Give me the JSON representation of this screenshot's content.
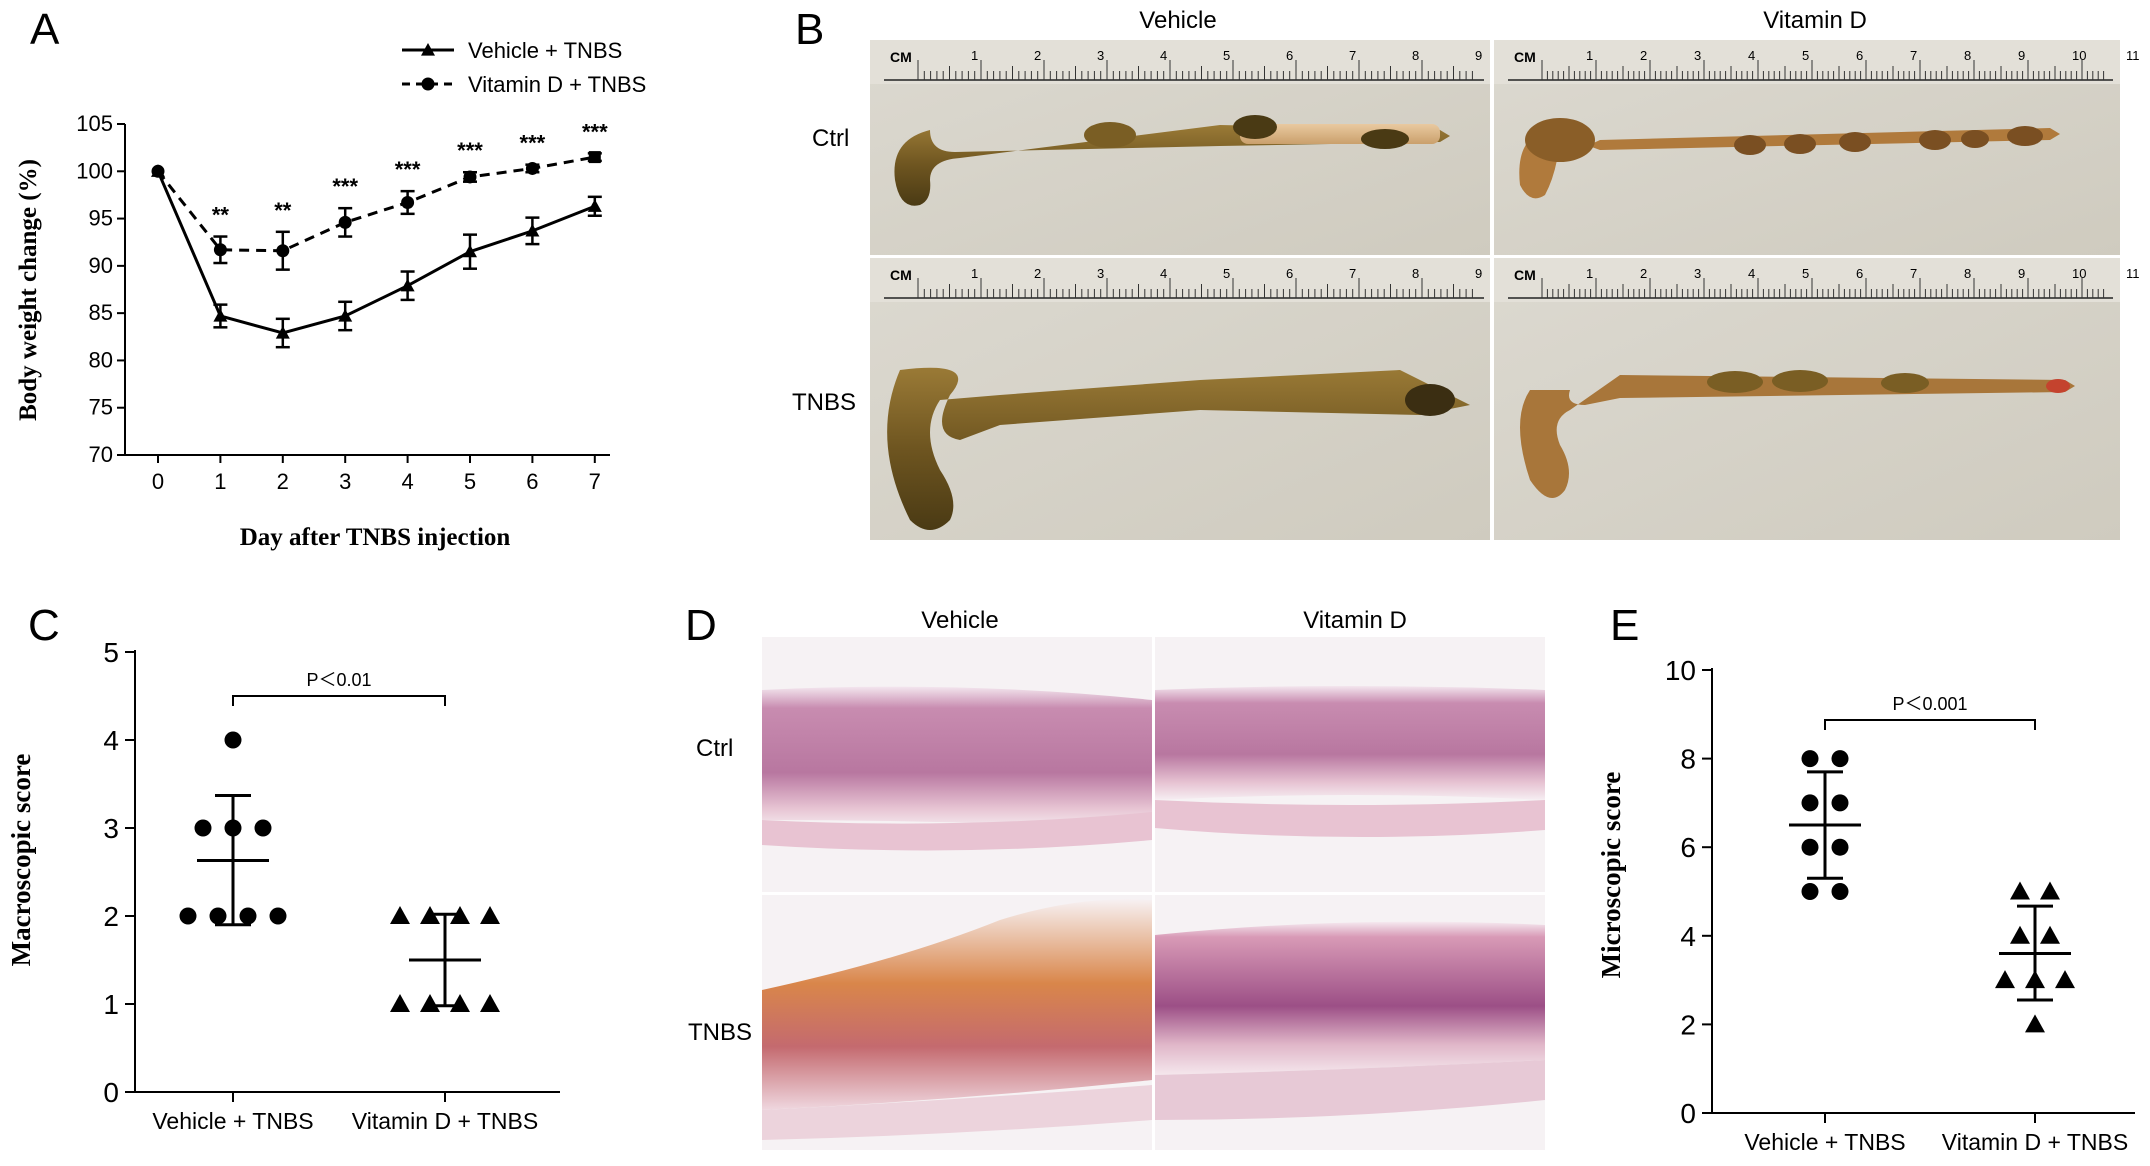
{
  "panels": {
    "a": {
      "letter": "A"
    },
    "b": {
      "letter": "B",
      "col_vehicle": "Vehicle",
      "col_vitd": "Vitamin D",
      "row_ctrl": "Ctrl",
      "row_tnbs": "TNBS"
    },
    "c": {
      "letter": "C"
    },
    "d": {
      "letter": "D",
      "col_vehicle": "Vehicle",
      "col_vitd": "Vitamin D",
      "row_ctrl": "Ctrl",
      "row_tnbs": "TNBS"
    },
    "e": {
      "letter": "E"
    }
  },
  "ruler": {
    "unit_label": "CM",
    "vehicle_ticks": [
      "1",
      "2",
      "3",
      "4",
      "5",
      "6",
      "7",
      "8",
      "9"
    ],
    "vitd_ticks": [
      "1",
      "2",
      "3",
      "4",
      "5",
      "6",
      "7",
      "8",
      "9",
      "10",
      "11"
    ]
  },
  "colors": {
    "photo_bg": "#d9d6cc",
    "colon_dark": "#5b4a1e",
    "colon_mid": "#8a6a2a",
    "tissue_pink": "#e8b7c8",
    "tissue_purple": "#a65a8d",
    "tissue_orange": "#d47a3a"
  },
  "chart_data": [
    {
      "panel": "A",
      "type": "line",
      "xlabel": "Day after TNBS injection",
      "ylabel": "Body weight change (%)",
      "x": [
        0,
        1,
        2,
        3,
        4,
        5,
        6,
        7
      ],
      "xticks": [
        "0",
        "1",
        "2",
        "3",
        "4",
        "5",
        "6",
        "7"
      ],
      "yticks": [
        "70",
        "75",
        "80",
        "85",
        "90",
        "95",
        "100",
        "105"
      ],
      "ylim": [
        70,
        105
      ],
      "legend_position": "top-right",
      "series": [
        {
          "name": "Vehicle + TNBS",
          "marker": "triangle",
          "line": "solid",
          "values": [
            100,
            84.7,
            82.9,
            84.7,
            87.9,
            91.5,
            93.7,
            96.3
          ],
          "errors": [
            0,
            1.2,
            1.5,
            1.5,
            1.5,
            1.8,
            1.4,
            1.0
          ]
        },
        {
          "name": "Vitamin D + TNBS",
          "marker": "circle",
          "line": "dashed",
          "values": [
            100,
            91.7,
            91.6,
            94.6,
            96.7,
            99.4,
            100.3,
            101.5
          ],
          "errors": [
            0,
            1.4,
            2.0,
            1.5,
            1.2,
            0.5,
            0.4,
            0.4
          ]
        }
      ],
      "annotations": [
        {
          "x": 1,
          "text": "**"
        },
        {
          "x": 2,
          "text": "**"
        },
        {
          "x": 3,
          "text": "***"
        },
        {
          "x": 4,
          "text": "***"
        },
        {
          "x": 5,
          "text": "***"
        },
        {
          "x": 6,
          "text": "***"
        },
        {
          "x": 7,
          "text": "***"
        }
      ]
    },
    {
      "panel": "C",
      "type": "scatter",
      "ylabel": "Macroscopic score",
      "categories": [
        "Vehicle + TNBS",
        "Vitamin D + TNBS"
      ],
      "yticks": [
        "0",
        "1",
        "2",
        "3",
        "4",
        "5"
      ],
      "ylim": [
        0,
        5
      ],
      "groups": [
        {
          "name": "Vehicle + TNBS",
          "marker": "circle",
          "points": [
            4,
            3,
            3,
            3,
            2,
            2,
            2,
            2
          ],
          "mean": 2.63,
          "sd_low": 1.9,
          "sd_high": 3.37
        },
        {
          "name": "Vitamin D + TNBS",
          "marker": "triangle",
          "points": [
            2,
            2,
            2,
            2,
            1,
            1,
            1,
            1
          ],
          "mean": 1.5,
          "sd_low": 0.98,
          "sd_high": 2.02
        }
      ],
      "significance": "P＜0.01"
    },
    {
      "panel": "E",
      "type": "scatter",
      "ylabel": "Microscopic score",
      "categories": [
        "Vehicle + TNBS",
        "Vitamin D + TNBS"
      ],
      "yticks": [
        "0",
        "2",
        "4",
        "6",
        "8",
        "10"
      ],
      "ylim": [
        0,
        10
      ],
      "groups": [
        {
          "name": "Vehicle + TNBS",
          "marker": "circle",
          "points": [
            8,
            8,
            7,
            7,
            6,
            6,
            5,
            5
          ],
          "mean": 6.5,
          "sd_low": 5.3,
          "sd_high": 7.7
        },
        {
          "name": "Vitamin D + TNBS",
          "marker": "triangle",
          "points": [
            5,
            5,
            4,
            4,
            3,
            3,
            3,
            2
          ],
          "mean": 3.6,
          "sd_low": 2.55,
          "sd_high": 4.67
        }
      ],
      "significance": "P＜0.001"
    }
  ]
}
